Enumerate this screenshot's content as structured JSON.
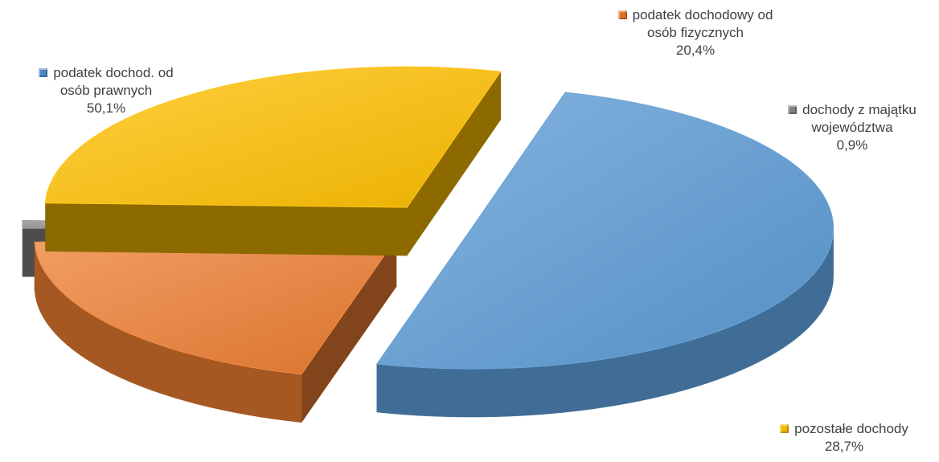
{
  "chart_data": {
    "type": "pie",
    "title": "",
    "slices": [
      {
        "name": "podatek dochod. od osób prawnych",
        "label_lines": [
          "podatek dochod. od",
          "osób prawnych"
        ],
        "value": 50.1,
        "value_label": "50,1%",
        "color": "#5b9bd5"
      },
      {
        "name": "podatek dochodowy od osób fizycznych",
        "label_lines": [
          "podatek dochodowy od",
          "osób fizycznych"
        ],
        "value": 20.4,
        "value_label": "20,4%",
        "color": "#ed7d31"
      },
      {
        "name": "dochody z majątku województwa",
        "label_lines": [
          "dochody z majątku",
          "województwa"
        ],
        "value": 0.9,
        "value_label": "0,9%",
        "color": "#8c8c8c"
      },
      {
        "name": "pozostałe dochody",
        "label_lines": [
          "pozostałe dochody"
        ],
        "value": 28.7,
        "value_label": "28,7%",
        "color": "#ffc000"
      }
    ],
    "style": "3d-exploded"
  }
}
